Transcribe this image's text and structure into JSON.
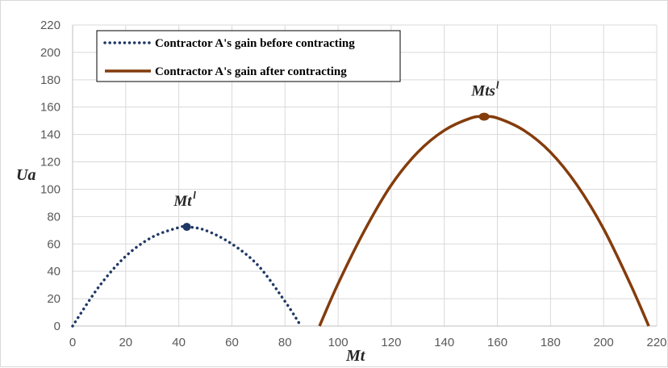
{
  "chart_data": {
    "type": "line",
    "xlabel": "Mt",
    "ylabel": "Ua",
    "xlim": [
      0,
      220
    ],
    "ylim": [
      0,
      220
    ],
    "x_ticks": [
      0,
      20,
      40,
      60,
      80,
      100,
      120,
      140,
      160,
      180,
      200,
      220
    ],
    "y_ticks": [
      0,
      20,
      40,
      60,
      80,
      100,
      120,
      140,
      160,
      180,
      200,
      220
    ],
    "grid": true,
    "legend_position": "top-left",
    "series": [
      {
        "name": "Contractor A's gain before contracting",
        "style": "dotted",
        "color": "#1f3864",
        "x": [
          0,
          10,
          20,
          30,
          40,
          43,
          50,
          60,
          70,
          80,
          86
        ],
        "y": [
          0,
          29,
          51,
          65,
          72,
          72.5,
          70,
          60,
          44,
          18,
          0
        ]
      },
      {
        "name": "Contractor A's gain after contracting",
        "style": "solid",
        "color": "#843c0c",
        "x": [
          93,
          100,
          110,
          120,
          130,
          140,
          150,
          155,
          160,
          170,
          180,
          190,
          200,
          210,
          217
        ],
        "y": [
          0,
          31,
          70,
          103,
          127,
          143,
          152,
          153,
          152,
          143,
          127,
          103,
          71,
          31,
          0
        ]
      }
    ],
    "annotations": [
      {
        "base": "Mt",
        "sup": "l",
        "point": {
          "x": 43,
          "y": 72.5
        },
        "color": "#1f3864"
      },
      {
        "base": "Mts",
        "sup": "l",
        "point": {
          "x": 155,
          "y": 153
        },
        "color": "#843c0c"
      }
    ]
  }
}
